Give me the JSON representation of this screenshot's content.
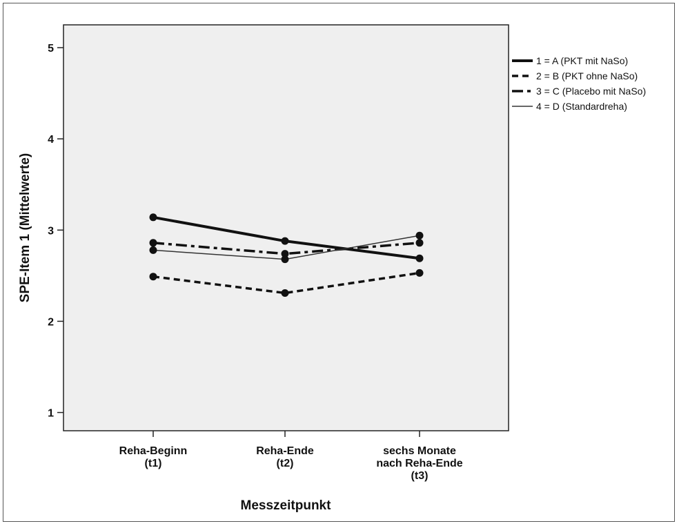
{
  "chart_data": {
    "type": "line",
    "title": "",
    "xlabel": "Messzeitpunkt",
    "ylabel": "SPE-Item 1 (Mittelwerte)",
    "ylim": [
      0.8,
      5.25
    ],
    "yticks": [
      1,
      2,
      3,
      4,
      5
    ],
    "ytick_labels": [
      "1",
      "2",
      "3",
      "4",
      "5"
    ],
    "categories": [
      [
        "Reha-Beginn",
        "(t1)"
      ],
      [
        "Reha-Ende",
        "(t2)"
      ],
      [
        "sechs Monate",
        "nach Reha-Ende",
        "(t3)"
      ]
    ],
    "grid": false,
    "legend_position": "right",
    "series": [
      {
        "name": "1 = A  (PKT mit NaSo)",
        "values": [
          3.14,
          2.88,
          2.69
        ],
        "style": "solid-thick",
        "color": "#111111"
      },
      {
        "name": "2 = B  (PKT ohne NaSo)",
        "values": [
          2.49,
          2.31,
          2.53
        ],
        "style": "dashed",
        "color": "#111111"
      },
      {
        "name": "3 = C  (Placebo mit NaSo)",
        "values": [
          2.86,
          2.74,
          2.86
        ],
        "style": "dash-dot",
        "color": "#111111"
      },
      {
        "name": "4 = D  (Standardreha)",
        "values": [
          2.78,
          2.68,
          2.94
        ],
        "style": "solid-thin",
        "color": "#333333"
      }
    ]
  },
  "colors": {
    "plot_background": "#efefef",
    "axis": "#222222"
  }
}
